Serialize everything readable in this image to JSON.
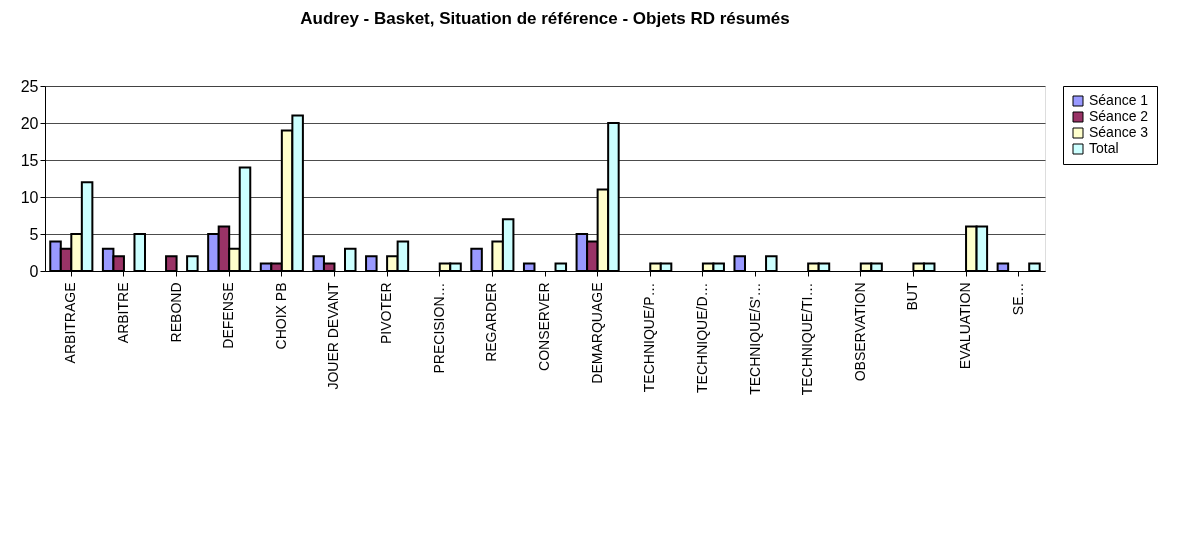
{
  "chart_data": {
    "type": "bar",
    "title": "Audrey - Basket, Situation de référence - Objets RD résumés",
    "categories": [
      "ARBITRAGE",
      "ARBITRE",
      "REBOND",
      "DEFENSE",
      "CHOIX PB",
      "JOUER DEVANT",
      "PIVOTER",
      "PRECISION…",
      "REGARDER",
      "CONSERVER",
      "DEMARQUAGE",
      "TECHNIQUE/P…",
      "TECHNIQUE/D…",
      "TECHNIQUE/S'…",
      "TECHNIQUE/TI…",
      "OBSERVATION",
      "BUT",
      "EVALUATION",
      "SE…"
    ],
    "series": [
      {
        "name": "Séance 1",
        "color": "#9999ff",
        "values": [
          4,
          3,
          null,
          5,
          1,
          2,
          2,
          null,
          3,
          1,
          5,
          null,
          null,
          2,
          null,
          null,
          null,
          null,
          1
        ]
      },
      {
        "name": "Séance 2",
        "color": "#993366",
        "values": [
          3,
          2,
          2,
          6,
          1,
          1,
          null,
          null,
          null,
          null,
          4,
          null,
          null,
          null,
          null,
          null,
          null,
          null,
          null
        ]
      },
      {
        "name": "Séance 3",
        "color": "#ffffcc",
        "values": [
          5,
          null,
          null,
          3,
          19,
          null,
          2,
          1,
          4,
          null,
          11,
          1,
          1,
          null,
          1,
          1,
          1,
          6,
          null
        ]
      },
      {
        "name": "Total",
        "color": "#ccffff",
        "values": [
          12,
          5,
          2,
          14,
          21,
          3,
          4,
          1,
          7,
          1,
          20,
          1,
          1,
          2,
          1,
          1,
          1,
          6,
          1
        ]
      }
    ],
    "ylim": [
      0,
      25
    ],
    "yticks": [
      0,
      5,
      10,
      15,
      20,
      25
    ],
    "grid": "y",
    "legend": "right"
  }
}
